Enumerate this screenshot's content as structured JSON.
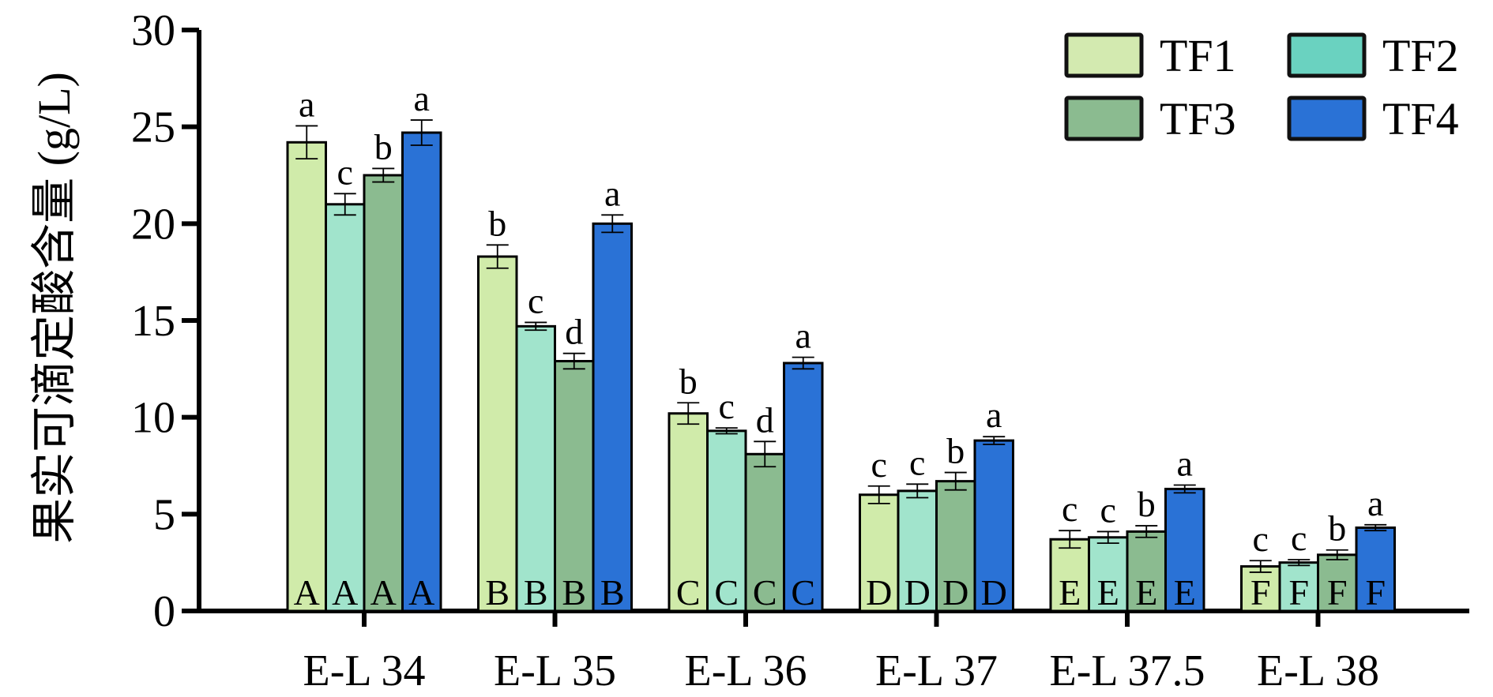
{
  "chart_data": {
    "type": "bar",
    "title": "",
    "xlabel": "",
    "ylabel": "果实可滴定酸含量 (g/L)",
    "ylim": [
      0,
      30
    ],
    "yticks": [
      0,
      5,
      10,
      15,
      20,
      25,
      30
    ],
    "grid": false,
    "legend_position": "top-right",
    "categories": [
      "E-L 34",
      "E-L 35",
      "E-L 36",
      "E-L 37",
      "E-L 37.5",
      "E-L 38"
    ],
    "group_letters": [
      "A",
      "B",
      "C",
      "D",
      "E",
      "F"
    ],
    "series": [
      {
        "name": "TF1",
        "color": "#d0ebaa",
        "legend_color": "#d3eab0",
        "values": [
          24.2,
          18.3,
          10.2,
          6.0,
          3.7,
          2.3
        ],
        "errors": [
          0.85,
          0.6,
          0.55,
          0.45,
          0.45,
          0.3
        ],
        "letters": [
          "a",
          "b",
          "b",
          "c",
          "c",
          "c"
        ]
      },
      {
        "name": "TF2",
        "color": "#a1e4cc",
        "legend_color": "#6ad2c0",
        "values": [
          21.0,
          14.7,
          9.3,
          6.2,
          3.8,
          2.5
        ],
        "errors": [
          0.55,
          0.2,
          0.15,
          0.35,
          0.3,
          0.15
        ],
        "letters": [
          "c",
          "c",
          "c",
          "c",
          "c",
          "c"
        ]
      },
      {
        "name": "TF3",
        "color": "#8bbb90",
        "legend_color": "#8bbb90",
        "values": [
          22.5,
          12.9,
          8.1,
          6.7,
          4.1,
          2.9
        ],
        "errors": [
          0.35,
          0.4,
          0.65,
          0.45,
          0.3,
          0.25
        ],
        "letters": [
          "b",
          "d",
          "d",
          "b",
          "b",
          "b"
        ]
      },
      {
        "name": "TF4",
        "color": "#2a72d6",
        "legend_color": "#2a72d6",
        "values": [
          24.7,
          20.0,
          12.8,
          8.8,
          6.3,
          4.3
        ],
        "errors": [
          0.65,
          0.45,
          0.3,
          0.2,
          0.2,
          0.15
        ],
        "letters": [
          "a",
          "a",
          "a",
          "a",
          "a",
          "a"
        ]
      }
    ]
  }
}
